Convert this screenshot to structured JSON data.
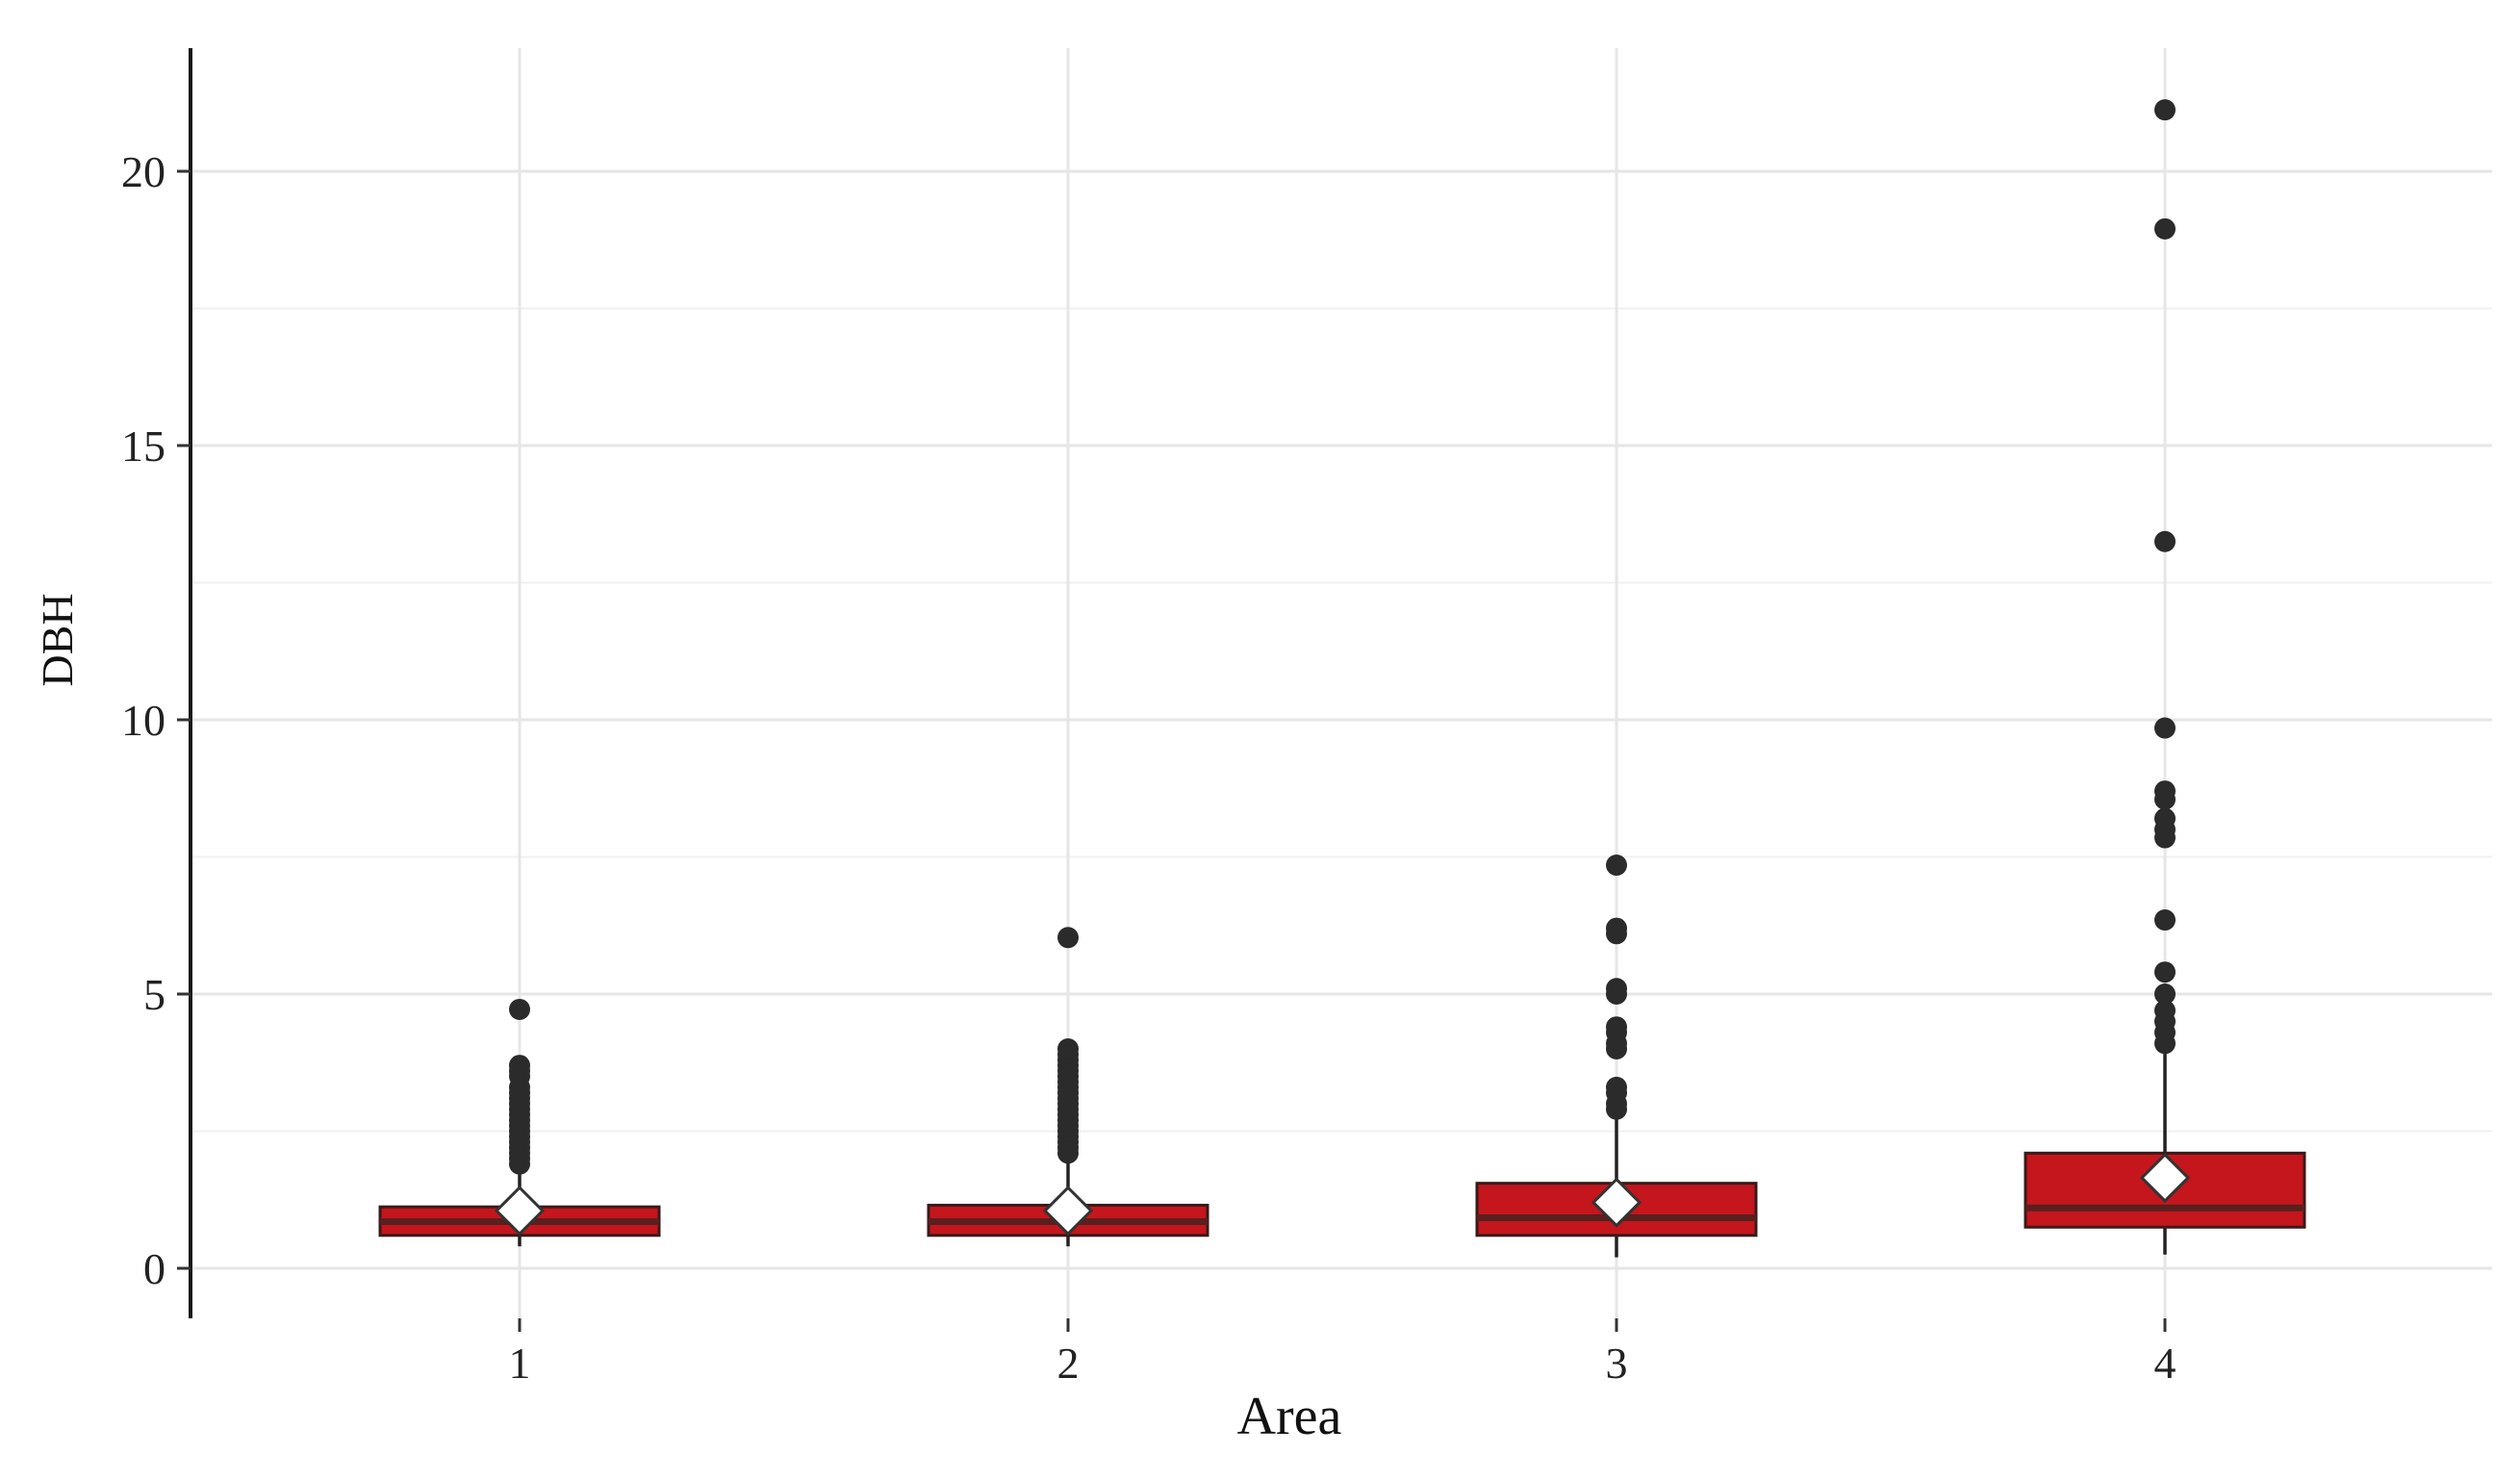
{
  "chart_data": {
    "type": "box",
    "title": "",
    "xlabel": "Area",
    "ylabel": "DBH",
    "ylim": [
      -0.9,
      22.2
    ],
    "y_ticks": [
      0,
      5,
      10,
      15,
      20
    ],
    "y_minor_ticks": [
      2.5,
      7.5,
      12.5,
      17.5
    ],
    "grid": true,
    "legend": "none",
    "colors": {
      "box_fill": "#c4161c",
      "median": "#5a1f1f",
      "points": "#2b2b2b"
    },
    "categories": [
      "1",
      "2",
      "3",
      "4"
    ],
    "boxes": [
      {
        "category": "1",
        "whisker_low": 0.4,
        "q1": 0.6,
        "median": 0.85,
        "q3": 1.12,
        "whisker_high": 1.8,
        "mean": 1.05,
        "outliers": [
          1.9,
          2.0,
          2.1,
          2.2,
          2.3,
          2.4,
          2.5,
          2.6,
          2.7,
          2.8,
          2.9,
          3.0,
          3.1,
          3.2,
          3.3,
          3.5,
          3.6,
          3.7,
          4.72
        ]
      },
      {
        "category": "2",
        "whisker_low": 0.4,
        "q1": 0.6,
        "median": 0.85,
        "q3": 1.15,
        "whisker_high": 2.0,
        "mean": 1.05,
        "outliers": [
          2.1,
          2.2,
          2.3,
          2.4,
          2.5,
          2.6,
          2.7,
          2.8,
          2.9,
          3.0,
          3.1,
          3.2,
          3.3,
          3.4,
          3.5,
          3.6,
          3.7,
          3.8,
          3.9,
          4.0,
          6.03
        ]
      },
      {
        "category": "3",
        "whisker_low": 0.2,
        "q1": 0.6,
        "median": 0.92,
        "q3": 1.55,
        "whisker_high": 2.8,
        "mean": 1.2,
        "outliers": [
          2.9,
          3.0,
          3.2,
          3.3,
          4.0,
          4.1,
          4.3,
          4.4,
          5.0,
          5.1,
          6.1,
          6.2,
          7.35
        ]
      },
      {
        "category": "4",
        "whisker_low": 0.25,
        "q1": 0.75,
        "median": 1.1,
        "q3": 2.1,
        "whisker_high": 4.0,
        "mean": 1.65,
        "outliers": [
          4.1,
          4.3,
          4.5,
          4.7,
          5.0,
          5.4,
          6.35,
          7.85,
          8.0,
          8.2,
          8.55,
          8.7,
          9.85,
          13.25,
          18.95,
          21.12
        ]
      }
    ]
  }
}
